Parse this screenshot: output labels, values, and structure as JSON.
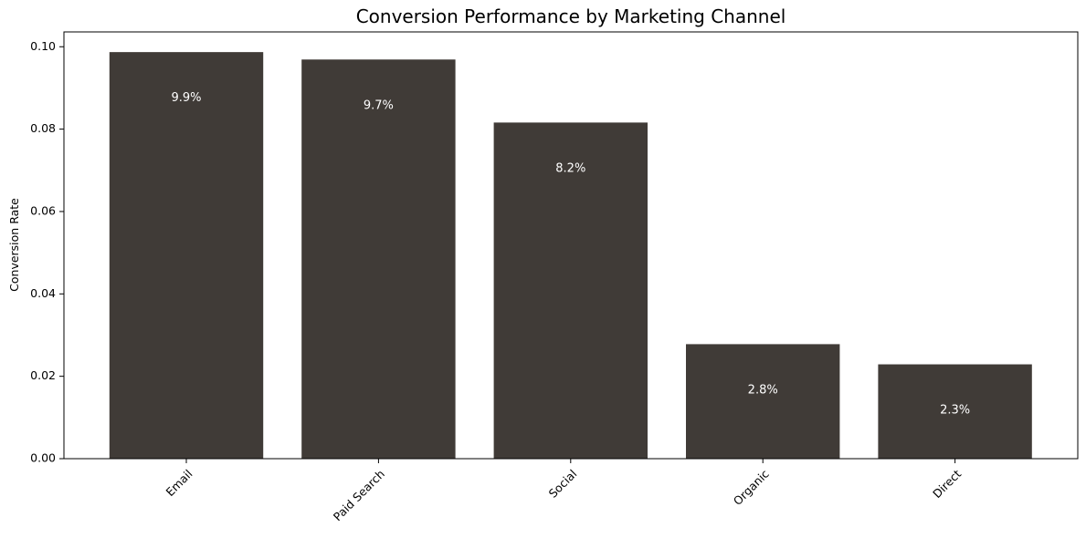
{
  "chart_data": {
    "type": "bar",
    "title": "Conversion Performance by Marketing Channel",
    "xlabel": "",
    "ylabel": "Conversion Rate",
    "categories": [
      "Email",
      "Paid Search",
      "Social",
      "Organic",
      "Direct"
    ],
    "values": [
      0.0987,
      0.0969,
      0.0816,
      0.0278,
      0.0229
    ],
    "data_labels": [
      "9.9%",
      "9.7%",
      "8.2%",
      "2.8%",
      "2.3%"
    ],
    "ylim": [
      0,
      0.1036
    ],
    "y_ticks": [
      0.0,
      0.02,
      0.04,
      0.06,
      0.08,
      0.1
    ],
    "y_tick_labels": [
      "0.00",
      "0.02",
      "0.04",
      "0.06",
      "0.08",
      "0.10"
    ],
    "grid": false,
    "legend": "none",
    "bar_color": "#403b37",
    "x_tick_rotation_deg": 45
  }
}
